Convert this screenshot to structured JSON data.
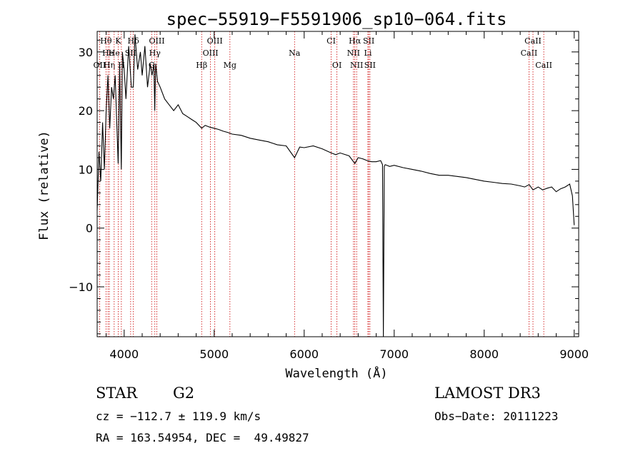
{
  "chart_data": {
    "type": "line",
    "title": "spec−55919−F5591906_sp10−064.fits",
    "xlabel": "Wavelength (Å)",
    "ylabel": "Flux (relative)",
    "xlim": [
      3700,
      9050
    ],
    "ylim": [
      -18.5,
      33.5
    ],
    "xticks": [
      4000,
      5000,
      6000,
      7000,
      8000,
      9000
    ],
    "yticks": [
      -10,
      0,
      10,
      20,
      30
    ],
    "ytick_labels": [
      "−10",
      "0",
      "10",
      "20",
      "30"
    ],
    "series": [
      {
        "name": "flux",
        "x": [
          3700,
          3720,
          3740,
          3760,
          3780,
          3800,
          3820,
          3840,
          3860,
          3880,
          3900,
          3920,
          3933,
          3950,
          3968,
          3980,
          4000,
          4020,
          4050,
          4080,
          4102,
          4120,
          4150,
          4180,
          4200,
          4230,
          4260,
          4290,
          4310,
          4330,
          4340,
          4350,
          4370,
          4400,
          4450,
          4500,
          4550,
          4600,
          4650,
          4700,
          4750,
          4800,
          4861,
          4900,
          4950,
          5000,
          5050,
          5100,
          5150,
          5200,
          5300,
          5400,
          5500,
          5600,
          5700,
          5800,
          5893,
          5950,
          6000,
          6100,
          6200,
          6300,
          6350,
          6400,
          6500,
          6563,
          6600,
          6650,
          6700,
          6750,
          6800,
          6850,
          6870,
          6880,
          6890,
          6900,
          6950,
          7000,
          7100,
          7200,
          7300,
          7400,
          7500,
          7600,
          7700,
          7800,
          7900,
          8000,
          8100,
          8200,
          8300,
          8400,
          8450,
          8500,
          8542,
          8600,
          8650,
          8700,
          8750,
          8800,
          8850,
          8900,
          8950,
          8980,
          9000
        ],
        "y": [
          3,
          13,
          8,
          18,
          10,
          20,
          26,
          17,
          24,
          22,
          26,
          17,
          11,
          28,
          10,
          30,
          27,
          22,
          31,
          24,
          24,
          33,
          27,
          30,
          26,
          31,
          24,
          28,
          26,
          28,
          20,
          28,
          25,
          24,
          22,
          21,
          20,
          21,
          19.5,
          19,
          18.5,
          18,
          17,
          17.5,
          17.2,
          17,
          16.8,
          16.5,
          16.3,
          16,
          15.8,
          15.3,
          15,
          14.7,
          14.2,
          14,
          12,
          13.8,
          13.7,
          14,
          13.5,
          12.8,
          12.5,
          12.8,
          12.3,
          11,
          12,
          11.8,
          11.5,
          11.3,
          11.3,
          11.5,
          10.8,
          -18.5,
          10.5,
          10.8,
          10.5,
          10.7,
          10.3,
          10,
          9.7,
          9.3,
          9,
          9,
          8.8,
          8.6,
          8.3,
          8,
          7.8,
          7.6,
          7.5,
          7.2,
          7,
          7.4,
          6.5,
          7,
          6.5,
          6.8,
          7,
          6.2,
          6.7,
          7,
          7.5,
          5.5,
          0.5
        ]
      }
    ],
    "spectral_lines": [
      {
        "label": "OII",
        "x": 3727,
        "row": 3
      },
      {
        "label": "Hθ",
        "x": 3798,
        "row": 1
      },
      {
        "label": "He",
        "x": 3820,
        "row": 2
      },
      {
        "label": "Hη",
        "x": 3835,
        "row": 3
      },
      {
        "label": "He",
        "x": 3889,
        "row": 2
      },
      {
        "label": "K",
        "x": 3934,
        "row": 1
      },
      {
        "label": "H",
        "x": 3969,
        "row": 3
      },
      {
        "label": "SII",
        "x": 4072,
        "row": 2
      },
      {
        "label": "Hδ",
        "x": 4102,
        "row": 1
      },
      {
        "label": "OIII",
        "x": 4363,
        "row": 1
      },
      {
        "label": "Hγ",
        "x": 4341,
        "row": 2
      },
      {
        "label": "G",
        "x": 4305,
        "row": 3
      },
      {
        "label": "Hβ",
        "x": 4861,
        "row": 3
      },
      {
        "label": "OIII",
        "x": 4959,
        "row": 2
      },
      {
        "label": "OIII",
        "x": 5007,
        "row": 1
      },
      {
        "label": "Mg",
        "x": 5175,
        "row": 3
      },
      {
        "label": "Na",
        "x": 5893,
        "row": 2
      },
      {
        "label": "CI",
        "x": 6300,
        "row": 1
      },
      {
        "label": "OI",
        "x": 6364,
        "row": 3
      },
      {
        "label": "NII",
        "x": 6548,
        "row": 2
      },
      {
        "label": "NII",
        "x": 6583,
        "row": 3
      },
      {
        "label": "Hα",
        "x": 6563,
        "row": 1
      },
      {
        "label": "Li",
        "x": 6708,
        "row": 2
      },
      {
        "label": "SII",
        "x": 6717,
        "row": 1
      },
      {
        "label": "SII",
        "x": 6731,
        "row": 3
      },
      {
        "label": "CaII",
        "x": 8498,
        "row": 2
      },
      {
        "label": "CaII",
        "x": 8542,
        "row": 1
      },
      {
        "label": "CaII",
        "x": 8662,
        "row": 3
      }
    ]
  },
  "info": {
    "class": "STAR",
    "subclass": "G2",
    "survey": "LAMOST DR3",
    "cz": "cz = −112.7 ± 119.9 km/s",
    "obs_date": "Obs−Date: 20111223",
    "radec": "RA = 163.54954, DEC =  49.49827"
  },
  "colors": {
    "spectrum": "#000000",
    "line_marker": "#cc0000",
    "text": "#000000"
  }
}
